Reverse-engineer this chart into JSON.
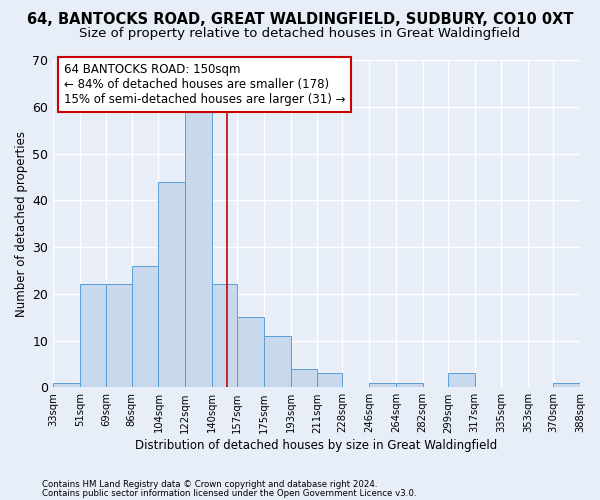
{
  "title1": "64, BANTOCKS ROAD, GREAT WALDINGFIELD, SUDBURY, CO10 0XT",
  "title2": "Size of property relative to detached houses in Great Waldingfield",
  "xlabel": "Distribution of detached houses by size in Great Waldingfield",
  "ylabel": "Number of detached properties",
  "footnote1": "Contains HM Land Registry data © Crown copyright and database right 2024.",
  "footnote2": "Contains public sector information licensed under the Open Government Licence v3.0.",
  "annotation_line1": "64 BANTOCKS ROAD: 150sqm",
  "annotation_line2": "← 84% of detached houses are smaller (178)",
  "annotation_line3": "15% of semi-detached houses are larger (31) →",
  "bar_edges": [
    33,
    51,
    69,
    86,
    104,
    122,
    140,
    157,
    175,
    193,
    211,
    228,
    246,
    264,
    282,
    299,
    317,
    335,
    353,
    370,
    388
  ],
  "bar_heights": [
    1,
    22,
    22,
    26,
    44,
    59,
    22,
    15,
    11,
    4,
    3,
    0,
    1,
    1,
    0,
    3,
    0,
    0,
    0,
    1
  ],
  "bar_color": "#c8d9ee",
  "bar_edge_color": "#5a9fd4",
  "vline_color": "#cc0000",
  "vline_x": 150,
  "ylim": [
    0,
    70
  ],
  "xlim": [
    33,
    388
  ],
  "yticks": [
    0,
    10,
    20,
    30,
    40,
    50,
    60,
    70
  ],
  "bg_color": "#e8eef8",
  "plot_bg_color": "#e8eef8",
  "grid_color": "#ffffff",
  "title_fontsize": 10.5,
  "subtitle_fontsize": 9.5,
  "annotation_box_color": "#cc0000",
  "tick_label_fontsize": 7.2,
  "ylabel_fontsize": 8.5,
  "xlabel_fontsize": 8.5,
  "footnote_fontsize": 6.2,
  "ann_fontsize": 8.5
}
